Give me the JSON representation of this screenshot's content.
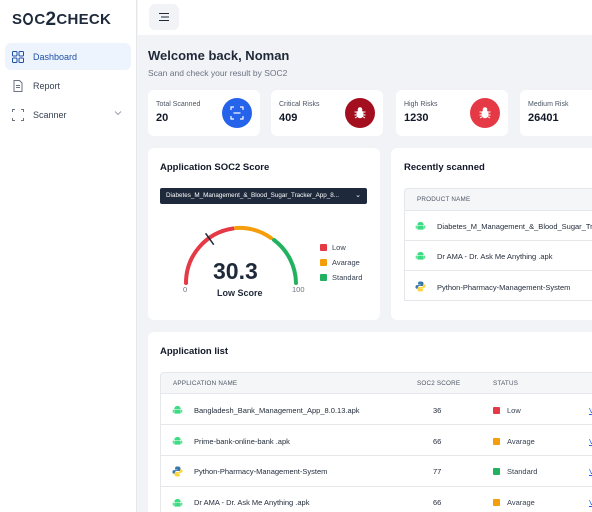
{
  "brand": {
    "part1": "S",
    "part2": "C",
    "part3": "2",
    "part4": "CHECK"
  },
  "sidebar": {
    "items": [
      {
        "label": "Dashboard",
        "icon": "grid-icon"
      },
      {
        "label": "Report",
        "icon": "document-icon"
      },
      {
        "label": "Scanner",
        "icon": "scan-icon"
      }
    ]
  },
  "header": {
    "welcome": "Welcome back, Noman",
    "subtitle": "Scan and check your result by SOC2"
  },
  "stats": [
    {
      "label": "Total Scanned",
      "value": "20",
      "color": "#2563eb",
      "icon": "scan-icon"
    },
    {
      "label": "Critical Risks",
      "value": "409",
      "color": "#a30f1f",
      "icon": "bug-icon"
    },
    {
      "label": "High Risks",
      "value": "1230",
      "color": "#e63946",
      "icon": "bug-icon"
    },
    {
      "label": "Medium Risk",
      "value": "26401",
      "color": "#f59e0b",
      "icon": "bug-icon"
    }
  ],
  "score_card": {
    "title": "Application SOC2 Score",
    "selected_app": "Diabetes_M_Management_&_Blood_Sugar_Tracker_App_8...",
    "score": "30.3",
    "score_value": 30.3,
    "score_label": "Low Score",
    "min": "0",
    "max": "100",
    "legend": [
      {
        "label": "Low",
        "color": "#e63946"
      },
      {
        "label": "Avarage",
        "color": "#f59e0b"
      },
      {
        "label": "Standard",
        "color": "#22b25f"
      }
    ]
  },
  "recent": {
    "title": "Recently scanned",
    "column": "PRODUCT NAME",
    "rows": [
      {
        "name": "Diabetes_M_Management_&_Blood_Sugar_Tr",
        "icon": "android-icon"
      },
      {
        "name": "Dr AMA - Dr. Ask Me Anything .apk",
        "icon": "android-icon"
      },
      {
        "name": "Python-Pharmacy-Management-System",
        "icon": "python-icon"
      }
    ]
  },
  "app_list": {
    "title": "Application list",
    "columns": [
      "APPLICATION NAME",
      "SOC2 SCORE",
      "STATUS"
    ],
    "view_label": "V",
    "rows": [
      {
        "name": "Bangladesh_Bank_Management_App_8.0.13.apk",
        "score": "36",
        "status": "Low",
        "status_color": "#e63946",
        "icon": "android-icon"
      },
      {
        "name": "Prime-bank-online-bank .apk",
        "score": "66",
        "status": "Avarage",
        "status_color": "#f59e0b",
        "icon": "android-icon"
      },
      {
        "name": "Python-Pharmacy-Management-System",
        "score": "77",
        "status": "Standard",
        "status_color": "#22b25f",
        "icon": "python-icon"
      },
      {
        "name": "Dr AMA - Dr. Ask Me Anything .apk",
        "score": "66",
        "status": "Avarage",
        "status_color": "#f59e0b",
        "icon": "android-icon"
      }
    ]
  }
}
